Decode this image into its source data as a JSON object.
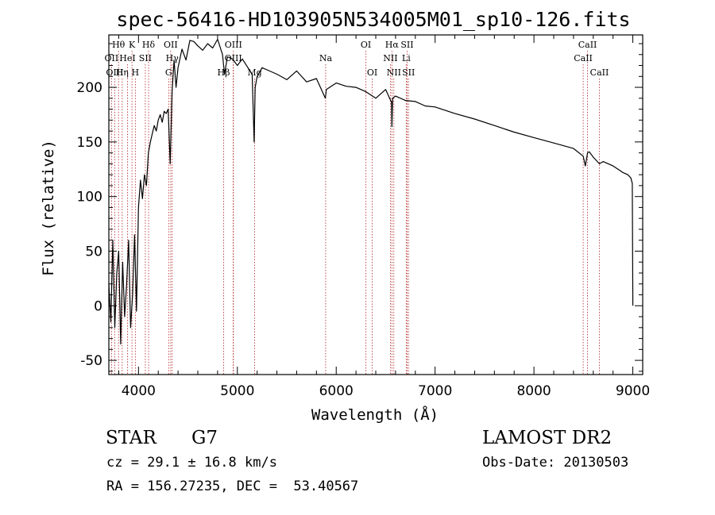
{
  "chart_data": {
    "type": "line",
    "title": "spec-56416-HD103905N534005M01_sp10-126.fits",
    "xlabel": "Wavelength (Å)",
    "ylabel": "Flux (relative)",
    "xlim": [
      3700,
      9100
    ],
    "ylim": [
      -63,
      248
    ],
    "xticks": [
      4000,
      5000,
      6000,
      7000,
      8000,
      9000
    ],
    "yticks": [
      -50,
      0,
      50,
      100,
      150,
      200
    ],
    "grid": false,
    "series": [
      {
        "x": [
          3700,
          3720,
          3740,
          3760,
          3780,
          3800,
          3820,
          3840,
          3860,
          3880,
          3900,
          3920,
          3940,
          3960,
          3980,
          4000,
          4020,
          4040,
          4060,
          4080,
          4100,
          4120,
          4140,
          4160,
          4180,
          4200,
          4220,
          4240,
          4260,
          4280,
          4300,
          4320,
          4340,
          4360,
          4380,
          4400,
          4440,
          4480,
          4520,
          4560,
          4600,
          4650,
          4700,
          4750,
          4800,
          4850,
          4870,
          4900,
          4950,
          5000,
          5050,
          5100,
          5150,
          5170,
          5180,
          5200,
          5250,
          5300,
          5400,
          5500,
          5600,
          5700,
          5800,
          5890,
          5900,
          6000,
          6100,
          6200,
          6300,
          6400,
          6500,
          6560,
          6563,
          6570,
          6600,
          6700,
          6800,
          6900,
          7000,
          7200,
          7400,
          7600,
          7800,
          8000,
          8200,
          8400,
          8498,
          8520,
          8542,
          8560,
          8600,
          8662,
          8700,
          8800,
          8900,
          8950,
          8980,
          8995,
          9000
        ],
        "values": [
          20,
          -15,
          60,
          -20,
          30,
          50,
          -35,
          40,
          -10,
          20,
          60,
          -20,
          10,
          65,
          -5,
          90,
          115,
          98,
          120,
          110,
          140,
          150,
          158,
          165,
          160,
          170,
          175,
          168,
          178,
          176,
          180,
          130,
          196,
          225,
          200,
          218,
          235,
          225,
          243,
          242,
          238,
          234,
          240,
          236,
          244,
          230,
          212,
          228,
          226,
          220,
          226,
          219,
          212,
          150,
          200,
          210,
          218,
          216,
          212,
          207,
          215,
          205,
          208,
          190,
          198,
          204,
          201,
          200,
          196,
          190,
          198,
          186,
          164,
          190,
          192,
          188,
          187,
          183,
          182,
          176,
          171,
          165,
          159,
          154,
          149,
          144,
          137,
          128,
          140,
          141,
          136,
          130,
          132,
          128,
          122,
          120,
          117,
          112,
          0
        ]
      }
    ],
    "line_markers": [
      {
        "label": "Hθ",
        "x": 3798,
        "row": 1
      },
      {
        "label": "K",
        "x": 3934,
        "row": 1
      },
      {
        "label": "Hδ",
        "x": 4102,
        "row": 1
      },
      {
        "label": "OII",
        "x": 4326,
        "row": 1
      },
      {
        "label": "OIII",
        "x": 4960,
        "row": 1
      },
      {
        "label": "OI",
        "x": 6300,
        "row": 1
      },
      {
        "label": "Hα",
        "x": 6563,
        "row": 1
      },
      {
        "label": "SII",
        "x": 6717,
        "row": 1
      },
      {
        "label": "CaII",
        "x": 8542,
        "row": 1
      },
      {
        "label": "OII",
        "x": 3727,
        "row": 2
      },
      {
        "label": "HeI",
        "x": 3889,
        "row": 2
      },
      {
        "label": "SII",
        "x": 4069,
        "row": 2
      },
      {
        "label": "Hγ",
        "x": 4341,
        "row": 2
      },
      {
        "label": "OIII",
        "x": 4959,
        "row": 2
      },
      {
        "label": "Na",
        "x": 5893,
        "row": 2
      },
      {
        "label": "NII",
        "x": 6548,
        "row": 2
      },
      {
        "label": "Li",
        "x": 6708,
        "row": 2
      },
      {
        "label": "CaII",
        "x": 8498,
        "row": 2
      },
      {
        "label": "OIII",
        "x": 3760,
        "row": 3
      },
      {
        "label": "Hη",
        "x": 3835,
        "row": 3
      },
      {
        "label": "H",
        "x": 3968,
        "row": 3
      },
      {
        "label": "G",
        "x": 4305,
        "row": 3
      },
      {
        "label": "Hβ",
        "x": 4861,
        "row": 3
      },
      {
        "label": "Mg",
        "x": 5175,
        "row": 3
      },
      {
        "label": "OI",
        "x": 6364,
        "row": 3
      },
      {
        "label": "NII",
        "x": 6583,
        "row": 3
      },
      {
        "label": "SII",
        "x": 6731,
        "row": 3
      },
      {
        "label": "CaII",
        "x": 8662,
        "row": 3
      }
    ]
  },
  "info": {
    "object_type": "STAR",
    "subclass": "G7",
    "survey": "LAMOST DR2",
    "redshift": "cz = 29.1 ± 16.8 km/s",
    "obs_date": "Obs-Date: 20130503",
    "coords": "RA = 156.27235, DEC =  53.40567"
  }
}
